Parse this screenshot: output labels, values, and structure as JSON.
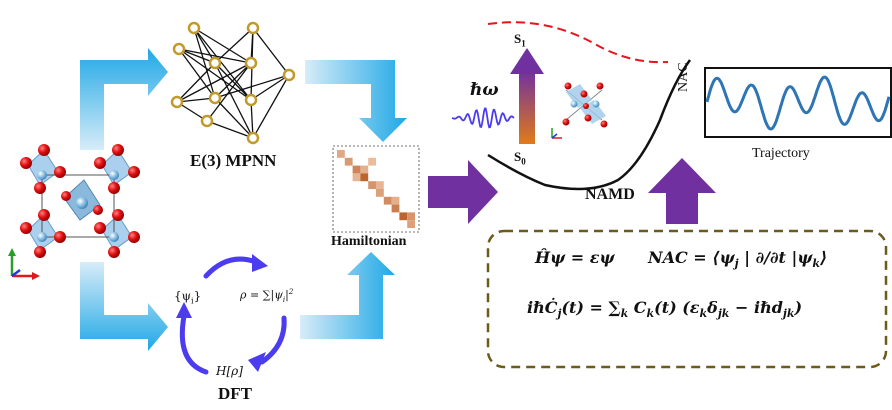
{
  "labels": {
    "mpnn": "E(3) MPNN",
    "hamiltonian": "Hamiltonian",
    "dft": "DFT",
    "namd": "NAMD",
    "nac_axis": "NAC",
    "trajectory": "Trajectory",
    "s1": "S",
    "s1_sub": "1",
    "s0": "S",
    "s0_sub": "0",
    "hbar_omega": "ℏω"
  },
  "dft_cycle": {
    "psi": "{ψ",
    "psi_sub": "i",
    "psi_close": "}",
    "rho": "ρ = ∑|ψ",
    "rho_sub": "i",
    "rho_close": "|",
    "rho_sup": "2",
    "h_rho": "H[ρ]"
  },
  "equations": {
    "line1_a": "Ĥψ = εψ",
    "line1_b": "NAC = ⟨ψ",
    "line1_b_sub": "j",
    "line1_c": "| ∂/∂t |ψ",
    "line1_c_sub": "k",
    "line1_d": "⟩",
    "line2_a": "iℏĊ",
    "line2_a_sub": "j",
    "line2_b": "(t) = ∑",
    "line2_b_sub": "k",
    "line2_c": "C",
    "line2_c_sub": "k",
    "line2_d": "(t) (ε",
    "line2_d_sub": "k",
    "line2_e": "δ",
    "line2_e_sub": "jk",
    "line2_f": " − iℏd",
    "line2_f_sub": "jk",
    "line2_g": ")"
  },
  "colors": {
    "arrow_blue": "#27a9e1",
    "arrow_purple": "#7030a0",
    "node_gold": "#c09a2a",
    "oxygen_red": "#e01010",
    "metal_blue": "#7fb2d9",
    "wave_blue": "#2e75b6",
    "cycle_purple": "#4b3cf0",
    "dash_red": "#e8141c",
    "box_border": "#6b5c1a"
  },
  "hamiltonian_matrix": {
    "size": 10,
    "cells": [
      [
        0,
        0,
        0.35
      ],
      [
        1,
        1,
        0.45
      ],
      [
        2,
        2,
        0.6
      ],
      [
        2,
        3,
        0.3
      ],
      [
        3,
        2,
        0.25
      ],
      [
        3,
        3,
        0.85
      ],
      [
        4,
        4,
        0.5
      ],
      [
        4,
        5,
        0.25
      ],
      [
        5,
        5,
        0.4
      ],
      [
        6,
        6,
        0.55
      ],
      [
        6,
        7,
        0.3
      ],
      [
        7,
        7,
        0.65
      ],
      [
        8,
        8,
        0.85
      ],
      [
        8,
        9,
        0.5
      ],
      [
        9,
        9,
        0.4
      ],
      [
        1,
        4,
        0.2
      ]
    ]
  }
}
